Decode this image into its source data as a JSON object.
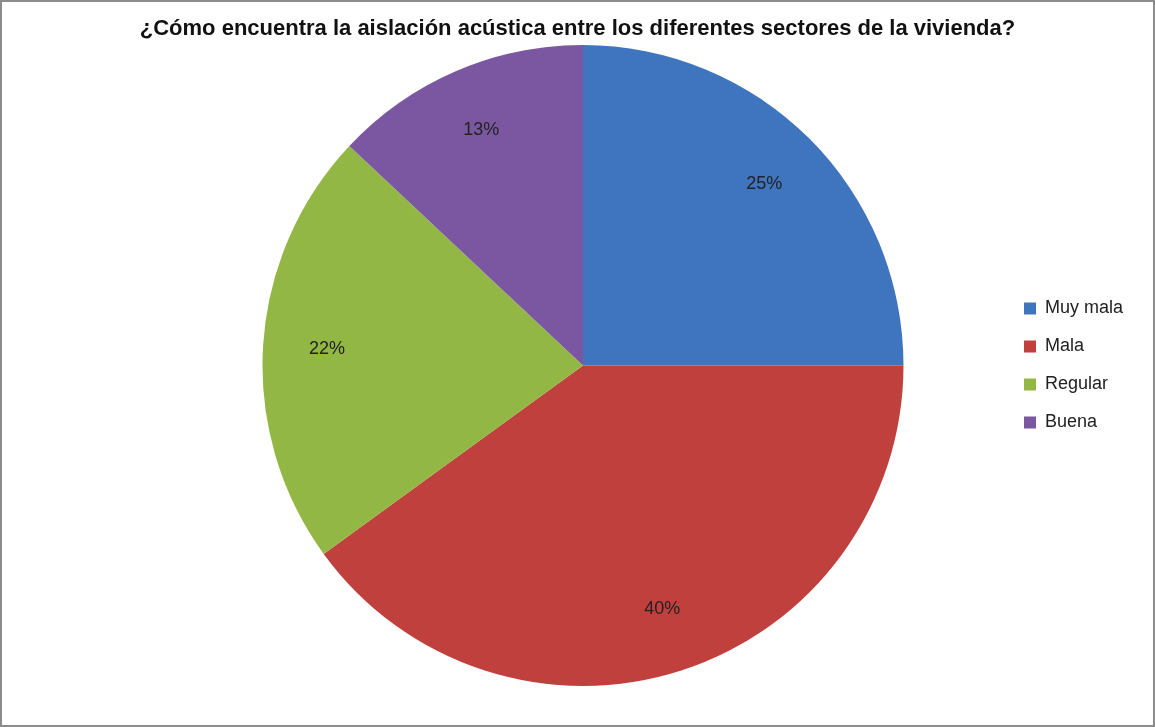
{
  "chart_data": {
    "type": "pie",
    "title": "¿Cómo encuentra la aislación acústica entre los diferentes sectores de la vivienda?",
    "categories": [
      "Muy mala",
      "Mala",
      "Regular",
      "Buena"
    ],
    "values": [
      25,
      40,
      22,
      13
    ],
    "colors": [
      "#3f74bf",
      "#c0403d",
      "#93b744",
      "#7a57a0"
    ],
    "value_labels": [
      "25%",
      "40%",
      "22%",
      "13%"
    ],
    "legend": "right"
  }
}
